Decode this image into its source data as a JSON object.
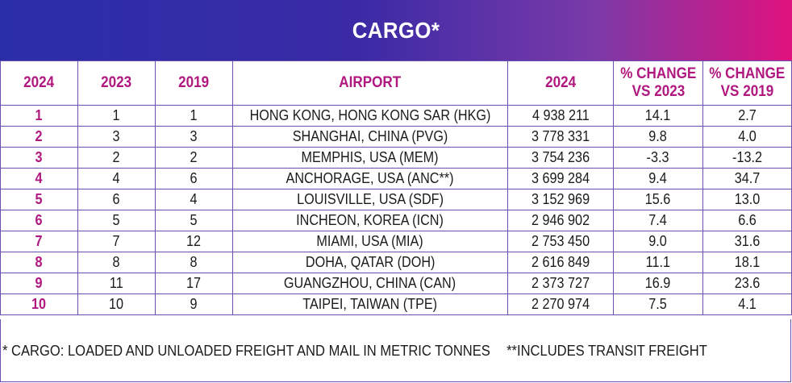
{
  "title": "CARGO*",
  "headers": {
    "rank_2024": "2024",
    "rank_2023": "2023",
    "rank_2019": "2019",
    "airport": "AIRPORT",
    "volume_2024": "2024",
    "change_2023_line1": "% CHANGE",
    "change_2023_line2": "VS 2023",
    "change_2019_line1": "% CHANGE",
    "change_2019_line2": "VS 2019"
  },
  "rows": [
    {
      "r2024": "1",
      "r2023": "1",
      "r2019": "1",
      "airport": "HONG KONG, HONG KONG SAR (HKG)",
      "volume": "4 938 211",
      "chg2023": "14.1",
      "chg2019": "2.7"
    },
    {
      "r2024": "2",
      "r2023": "3",
      "r2019": "3",
      "airport": "SHANGHAI, CHINA (PVG)",
      "volume": "3 778 331",
      "chg2023": "9.8",
      "chg2019": "4.0"
    },
    {
      "r2024": "3",
      "r2023": "2",
      "r2019": "2",
      "airport": "MEMPHIS, USA (MEM)",
      "volume": "3 754 236",
      "chg2023": "-3.3",
      "chg2019": "-13.2"
    },
    {
      "r2024": "4",
      "r2023": "4",
      "r2019": "6",
      "airport": "ANCHORAGE, USA (ANC**)",
      "volume": "3 699 284",
      "chg2023": "9.4",
      "chg2019": "34.7"
    },
    {
      "r2024": "5",
      "r2023": "6",
      "r2019": "4",
      "airport": "LOUISVILLE, USA (SDF)",
      "volume": "3 152 969",
      "chg2023": "15.6",
      "chg2019": "13.0"
    },
    {
      "r2024": "6",
      "r2023": "5",
      "r2019": "5",
      "airport": "INCHEON, KOREA (ICN)",
      "volume": "2 946 902",
      "chg2023": "7.4",
      "chg2019": "6.6"
    },
    {
      "r2024": "7",
      "r2023": "7",
      "r2019": "12",
      "airport": "MIAMI, USA (MIA)",
      "volume": "2 753 450",
      "chg2023": "9.0",
      "chg2019": "31.6"
    },
    {
      "r2024": "8",
      "r2023": "8",
      "r2019": "8",
      "airport": "DOHA, QATAR (DOH)",
      "volume": "2 616 849",
      "chg2023": "11.1",
      "chg2019": "18.1"
    },
    {
      "r2024": "9",
      "r2023": "11",
      "r2019": "17",
      "airport": "GUANGZHOU, CHINA (CAN)",
      "volume": "2 373 727",
      "chg2023": "16.9",
      "chg2019": "23.6"
    },
    {
      "r2024": "10",
      "r2023": "10",
      "r2019": "9",
      "airport": "TAIPEI, TAIWAN (TPE)",
      "volume": "2 270 974",
      "chg2023": "7.5",
      "chg2019": "4.1"
    }
  ],
  "footnote_cargo": "* CARGO: LOADED AND UNLOADED FREIGHT AND MAIL IN METRIC TONNES",
  "footnote_transit": "**INCLUDES TRANSIT FREIGHT",
  "colors": {
    "banner_start": "#2a2ea8",
    "banner_end": "#e0127e",
    "header_text": "#b0187f",
    "grid": "#6a4fb0"
  }
}
